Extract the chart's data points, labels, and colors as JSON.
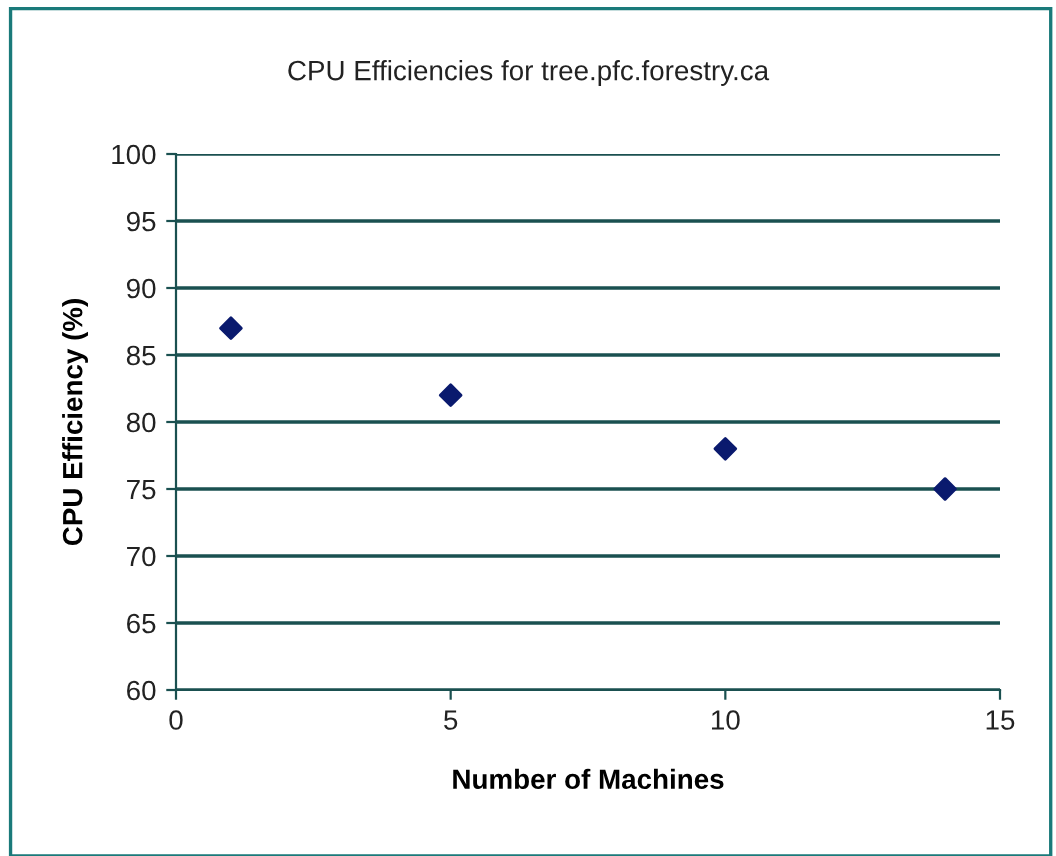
{
  "chart_data": {
    "type": "scatter",
    "title": "CPU Efficiencies for tree.pfc.forestry.ca",
    "xlabel": "Number of Machines",
    "ylabel": "CPU Efficiency (%)",
    "x": [
      1,
      5,
      10,
      14
    ],
    "series": [
      {
        "color": "#0a1a6e",
        "values": [
          87,
          82,
          78,
          75
        ]
      }
    ],
    "xlim": [
      0,
      15
    ],
    "xticks": [
      0,
      5,
      10,
      15
    ],
    "ylim": [
      60,
      100
    ],
    "yticks": [
      60,
      65,
      70,
      75,
      80,
      85,
      90,
      95,
      100
    ],
    "grid": "y",
    "marker": "diamond",
    "legend": false
  }
}
